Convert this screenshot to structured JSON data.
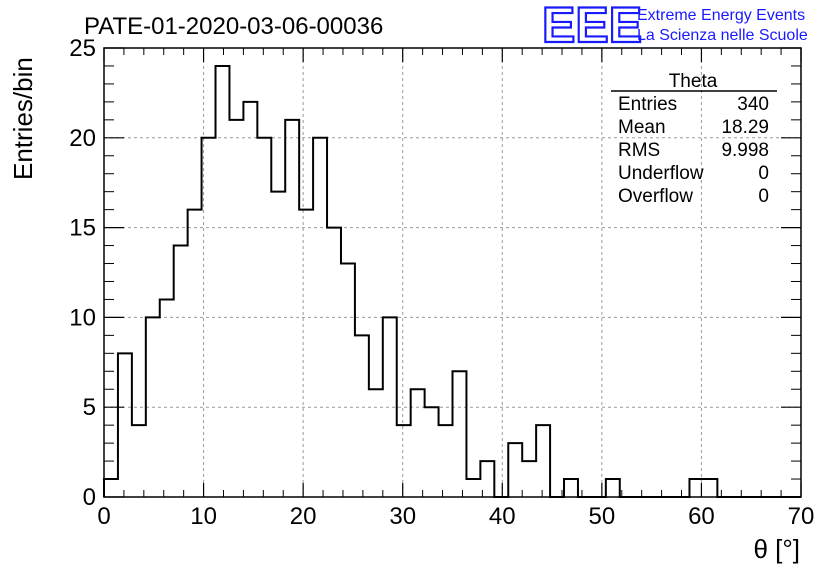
{
  "header": {
    "title": "PATE-01-2020-03-06-00036"
  },
  "logo": {
    "mark": "EEE",
    "line1": "Extreme Energy Events",
    "line2": "La Scienza nelle Scuole",
    "color": "#1a1aff"
  },
  "stats": {
    "name": "Theta",
    "rows": [
      {
        "label": "Entries",
        "value": "340"
      },
      {
        "label": "Mean",
        "value": "18.29"
      },
      {
        "label": "RMS",
        "value": "9.998"
      },
      {
        "label": "Underflow",
        "value": "0"
      },
      {
        "label": "Overflow",
        "value": "0"
      }
    ]
  },
  "chart_data": {
    "type": "bar",
    "style": "step-histogram",
    "xlabel": "θ [°]",
    "ylabel": "Entries/bin",
    "xlim": [
      0,
      70
    ],
    "ylim": [
      0,
      25
    ],
    "grid": true,
    "x_ticks": [
      0,
      10,
      20,
      30,
      40,
      50,
      60,
      70
    ],
    "y_ticks": [
      0,
      5,
      10,
      15,
      20,
      25
    ],
    "bin_width": 1.4,
    "bin_edges_start": 0,
    "values": [
      1,
      8,
      4,
      10,
      11,
      14,
      16,
      20,
      24,
      21,
      22,
      20,
      17,
      21,
      16,
      20,
      15,
      13,
      9,
      6,
      10,
      4,
      6,
      5,
      4,
      7,
      1,
      2,
      0,
      3,
      2,
      4,
      0,
      1,
      0,
      0,
      1,
      0,
      0,
      0,
      0,
      0,
      1,
      1,
      0,
      0,
      0,
      0,
      0,
      0
    ]
  }
}
